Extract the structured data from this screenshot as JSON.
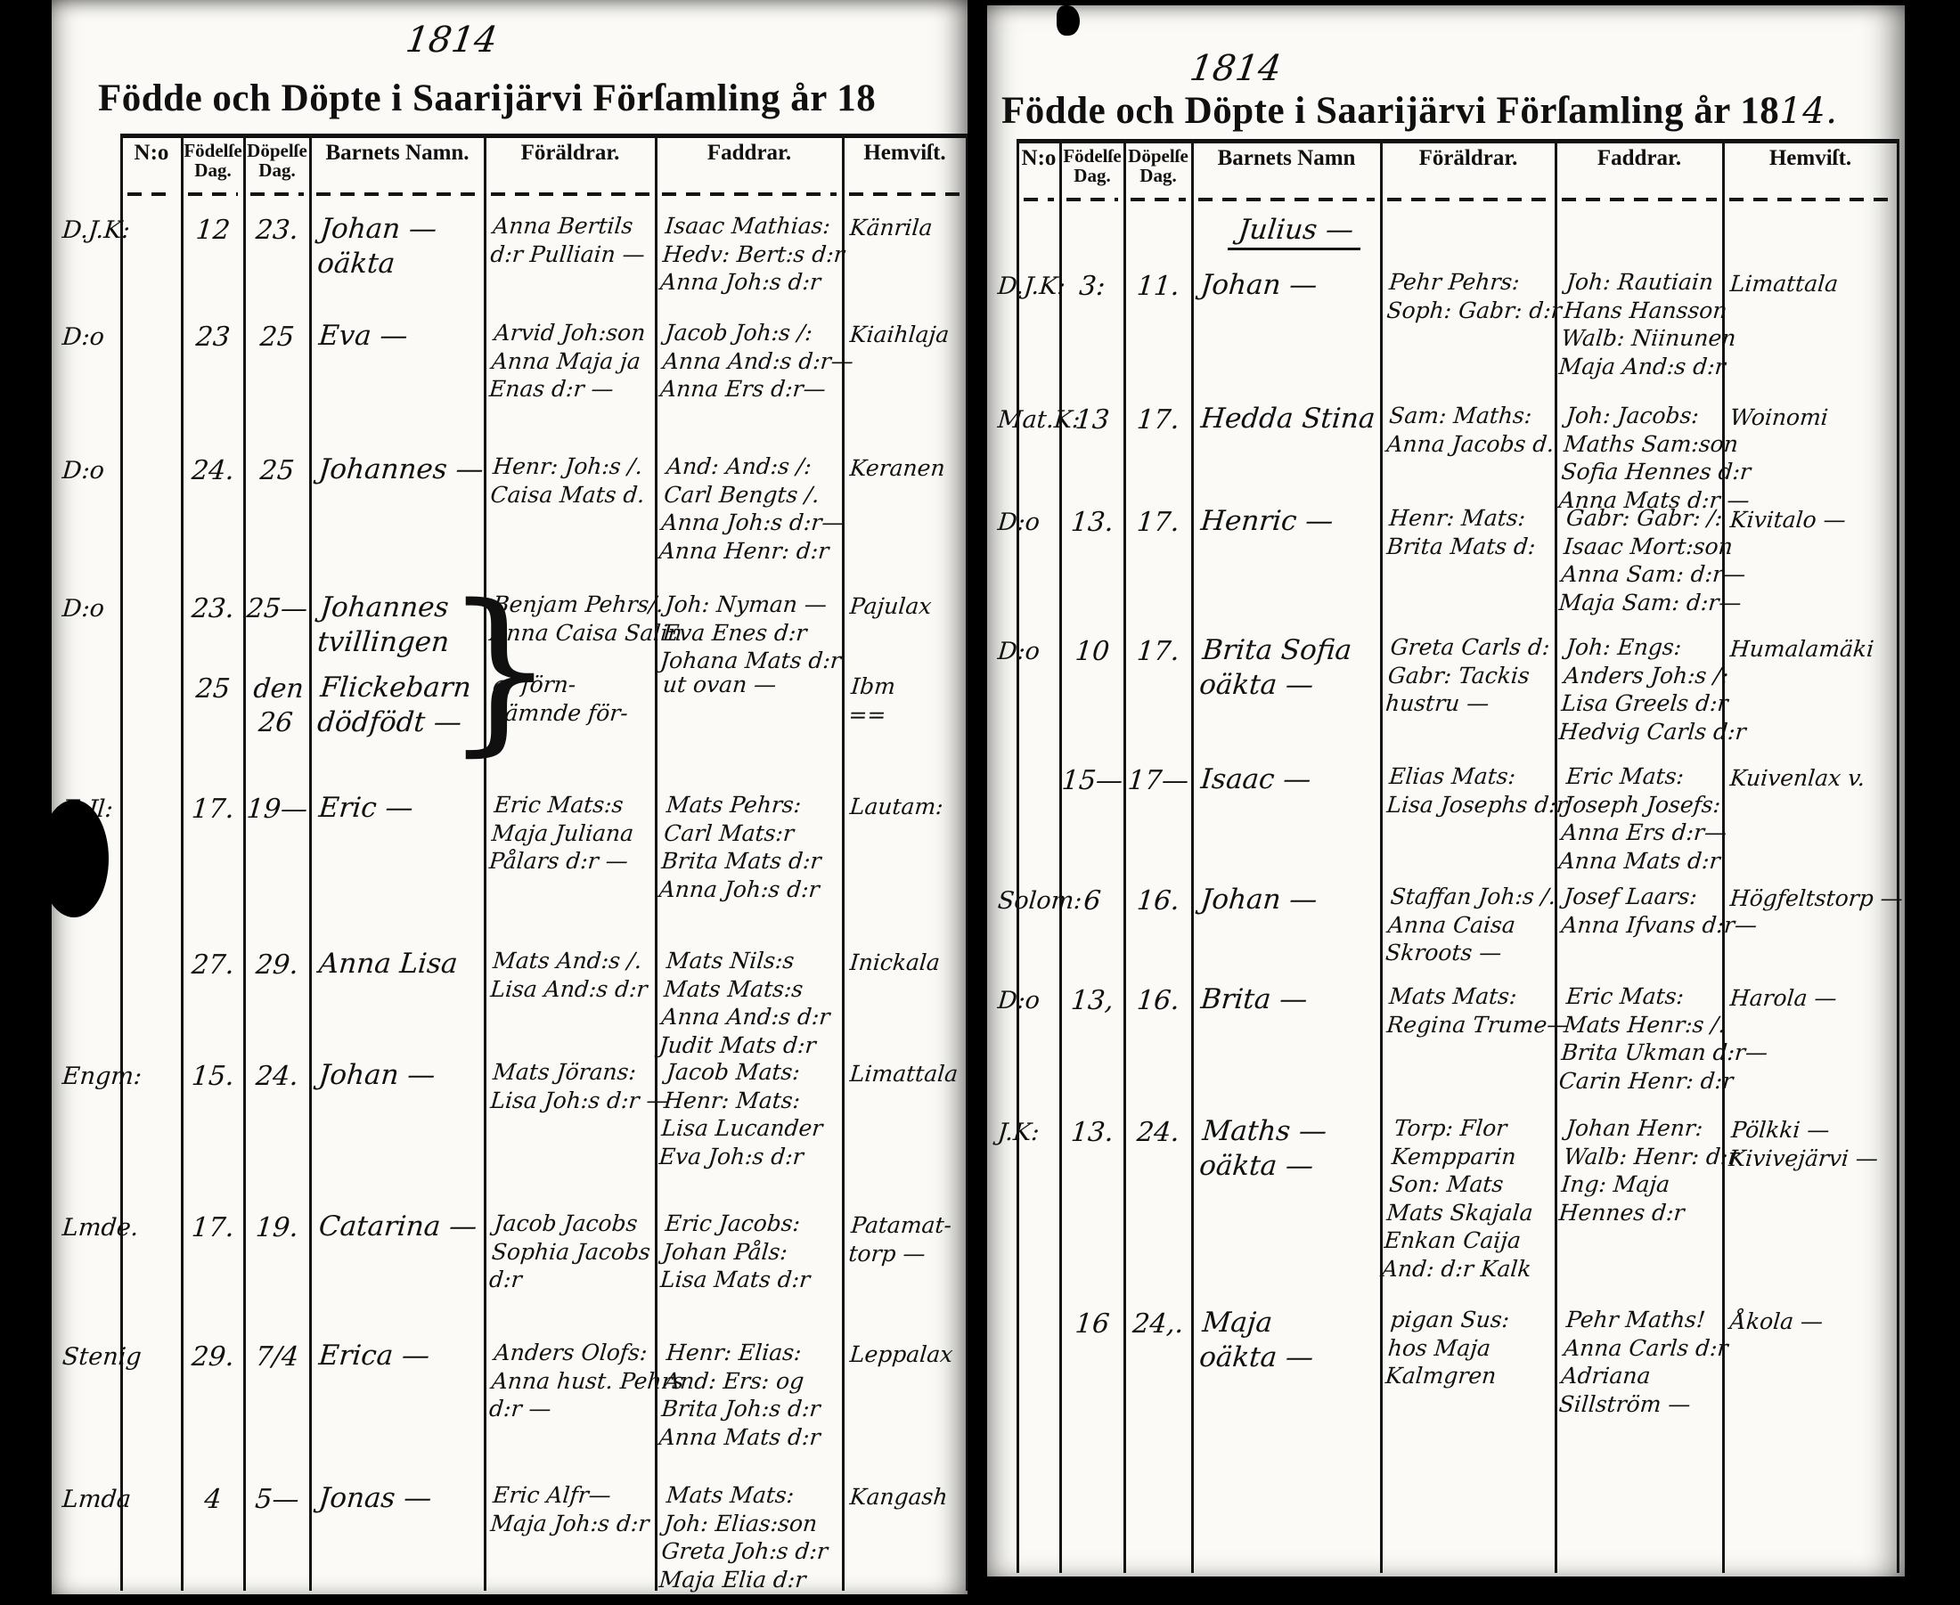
{
  "pages": [
    {
      "side": "left",
      "year_note": "1814",
      "title": "Födde och Döpte i Saarijärvi Förſamling år 18",
      "title_year_handwritten": "",
      "columns": [
        {
          "l1": "N:o",
          "l2": ""
        },
        {
          "l1": "Födelſe",
          "l2": "Dag."
        },
        {
          "l1": "Döpelſe",
          "l2": "Dag."
        },
        {
          "l1": "Barnets Namn.",
          "l2": ""
        },
        {
          "l1": "Föräldrar.",
          "l2": ""
        },
        {
          "l1": "Faddrar.",
          "l2": ""
        },
        {
          "l1": "Hemviſt.",
          "l2": ""
        }
      ],
      "rows": [
        {
          "margin": "D.J.K:",
          "born": [
            "12"
          ],
          "bapt": [
            "23."
          ],
          "name": [
            "Johan —",
            "oäkta"
          ],
          "parents": [
            "Anna Bertils",
            "d:r Pulliain —"
          ],
          "godparents": [
            "Isaac Mathias:",
            "Hedv: Bert:s d:r",
            "Anna Joh:s d:r"
          ],
          "residence": [
            "Känrila"
          ]
        },
        {
          "margin": "D:o",
          "born": [
            "23"
          ],
          "bapt": [
            "25"
          ],
          "name": [
            "Eva —"
          ],
          "parents": [
            "Arvid Joh:son",
            "Anna Maja ja",
            "Enas d:r —"
          ],
          "godparents": [
            "Jacob Joh:s /:",
            "Anna And:s d:r—",
            "Anna Ers d:r—"
          ],
          "residence": [
            "Kiaihlaja"
          ]
        },
        {
          "margin": "D:o",
          "born": [
            "24."
          ],
          "bapt": [
            "25"
          ],
          "name": [
            "Johannes —"
          ],
          "parents": [
            "Henr: Joh:s /.",
            "Caisa Mats d."
          ],
          "godparents": [
            "And: And:s /:",
            "Carl Bengts /.",
            "Anna Joh:s d:r—",
            "Anna Henr: d:r"
          ],
          "residence": [
            "Keranen"
          ]
        },
        {
          "margin": "D:o",
          "born": [
            "23."
          ],
          "bapt": [
            "25—"
          ],
          "name": [
            "Johannes",
            "tvillingen"
          ],
          "parents": [
            "Benjam Pehrs/.",
            "Anna Caisa Salin"
          ],
          "godparents": [
            "Joh: Nyman —",
            "Eva Enes d:r",
            "Johana Mats d:r"
          ],
          "residence": [
            "Pajulax"
          ]
        },
        {
          "margin": "",
          "born": [
            "25"
          ],
          "bapt": [
            "den",
            "26"
          ],
          "name": [
            "Flickebarn",
            "dödfödt —"
          ],
          "parents": [
            "af förn-",
            "nämnde för-"
          ],
          "godparents": [
            "ut ovan —"
          ],
          "residence": [
            "Ibm",
            "=="
          ]
        },
        {
          "margin": "E.Jl:",
          "born": [
            "17."
          ],
          "bapt": [
            "19—"
          ],
          "name": [
            "Eric —"
          ],
          "parents": [
            "Eric Mats:s",
            "Maja Juliana",
            "Pålars d:r —"
          ],
          "godparents": [
            "Mats Pehrs:",
            "Carl Mats:r",
            "Brita Mats d:r",
            "Anna Joh:s d:r"
          ],
          "residence": [
            "Lautam:"
          ]
        },
        {
          "margin": "",
          "born": [
            "27."
          ],
          "bapt": [
            "29."
          ],
          "name": [
            "Anna Lisa"
          ],
          "parents": [
            "Mats And:s /.",
            "Lisa And:s d:r"
          ],
          "godparents": [
            "Mats Nils:s",
            "Mats Mats:s",
            "Anna And:s d:r",
            "Judit Mats d:r"
          ],
          "residence": [
            "Inickala"
          ]
        },
        {
          "margin": "Engm:",
          "born": [
            "15."
          ],
          "bapt": [
            "24."
          ],
          "name": [
            "Johan —"
          ],
          "parents": [
            "Mats Jörans:",
            "Lisa Joh:s d:r —"
          ],
          "godparents": [
            "Jacob Mats:",
            "Henr: Mats:",
            "Lisa Lucander",
            "Eva Joh:s d:r"
          ],
          "residence": [
            "Limattala"
          ]
        },
        {
          "margin": "Lmde.",
          "born": [
            "17."
          ],
          "bapt": [
            "19."
          ],
          "name": [
            "Catarina —"
          ],
          "parents": [
            "Jacob Jacobs",
            "Sophia Jacobs",
            "d:r"
          ],
          "godparents": [
            "Eric Jacobs:",
            "Johan Påls:",
            "Lisa Mats d:r"
          ],
          "residence": [
            "Patamat-",
            "torp —"
          ]
        },
        {
          "margin": "Stenig",
          "born": [
            "29."
          ],
          "bapt": [
            "7/4"
          ],
          "name": [
            "Erica —"
          ],
          "parents": [
            "Anders Olofs:",
            "Anna hust. Pehrs",
            "d:r —"
          ],
          "godparents": [
            "Henr: Elias:",
            "And: Ers: og",
            "Brita Joh:s d:r",
            "Anna Mats d:r"
          ],
          "residence": [
            "Leppalax"
          ]
        },
        {
          "margin": "Lmda",
          "born": [
            "4"
          ],
          "bapt": [
            "5—"
          ],
          "name": [
            "Jonas —"
          ],
          "parents": [
            "Eric Alfr—",
            "Maja Joh:s d:r"
          ],
          "godparents": [
            "Mats Mats:",
            "Joh: Elias:son",
            "Greta Joh:s d:r",
            "Maja Elia d:r"
          ],
          "residence": [
            "Kangash"
          ]
        }
      ]
    },
    {
      "side": "right",
      "year_note": "1814",
      "title": "Födde och Döpte i Saarijärvi Förſamling år 18",
      "title_year_handwritten": "14.",
      "month_header": "Julius —",
      "columns": [
        {
          "l1": "N:o",
          "l2": ""
        },
        {
          "l1": "Födelſe",
          "l2": "Dag."
        },
        {
          "l1": "Döpelſe",
          "l2": "Dag."
        },
        {
          "l1": "Barnets Namn",
          "l2": ""
        },
        {
          "l1": "Föräldrar.",
          "l2": ""
        },
        {
          "l1": "Faddrar.",
          "l2": ""
        },
        {
          "l1": "Hemviſt.",
          "l2": ""
        }
      ],
      "rows": [
        {
          "margin": "D.J.K:",
          "born": [
            "3:"
          ],
          "bapt": [
            "11."
          ],
          "name": [
            "Johan —"
          ],
          "parents": [
            "Pehr Pehrs:",
            "Soph: Gabr: d:r"
          ],
          "godparents": [
            "Joh: Rautiain",
            "Hans Hansson",
            "Walb: Niinunen",
            "Maja And:s d:r"
          ],
          "residence": [
            "Limattala"
          ]
        },
        {
          "margin": "Mat.K:",
          "born": [
            "13"
          ],
          "bapt": [
            "17."
          ],
          "name": [
            "Hedda Stina"
          ],
          "parents": [
            "Sam: Maths:",
            "Anna Jacobs d."
          ],
          "godparents": [
            "Joh: Jacobs:",
            "Maths Sam:son",
            "Sofia Hennes d:r",
            "Anna Mats d:r —"
          ],
          "residence": [
            "Woinomi"
          ]
        },
        {
          "margin": "D:o",
          "born": [
            "13."
          ],
          "bapt": [
            "17."
          ],
          "name": [
            "Henric —"
          ],
          "parents": [
            "Henr: Mats:",
            "Brita Mats d:"
          ],
          "godparents": [
            "Gabr: Gabr: /:",
            "Isaac Mort:son",
            "Anna Sam: d:r—",
            "Maja Sam: d:r—"
          ],
          "residence": [
            "Kivitalo —"
          ]
        },
        {
          "margin": "D:o",
          "born": [
            "10"
          ],
          "bapt": [
            "17."
          ],
          "name": [
            "Brita Sofia",
            "oäkta —"
          ],
          "parents": [
            "Greta Carls d:",
            "Gabr: Tackis",
            "hustru —"
          ],
          "godparents": [
            "Joh: Engs:",
            "Anders Joh:s /:",
            "Lisa Greels d:r",
            "Hedvig Carls d:r"
          ],
          "residence": [
            "Humalamäki"
          ]
        },
        {
          "margin": "",
          "born": [
            "15—"
          ],
          "bapt": [
            "17—"
          ],
          "name": [
            "Isaac —"
          ],
          "parents": [
            "Elias Mats:",
            "Lisa Josephs d:r"
          ],
          "godparents": [
            "Eric Mats:",
            "Joseph Josefs:",
            "Anna Ers d:r—",
            "Anna Mats d:r"
          ],
          "residence": [
            "Kuivenlax v."
          ]
        },
        {
          "margin": "Solom:",
          "born": [
            "6"
          ],
          "bapt": [
            "16."
          ],
          "name": [
            "Johan —"
          ],
          "parents": [
            "Staffan Joh:s /.",
            "Anna Caisa",
            "Skroots —"
          ],
          "godparents": [
            "Josef Laars:",
            "Anna Ifvans d:r—"
          ],
          "residence": [
            "Högfeltstorp —"
          ]
        },
        {
          "margin": "D:o",
          "born": [
            "13,"
          ],
          "bapt": [
            "16."
          ],
          "name": [
            "Brita —"
          ],
          "parents": [
            "Mats Mats:",
            "Regina Trume—"
          ],
          "godparents": [
            "Eric Mats:",
            "Mats Henr:s /.",
            "Brita Ukman d:r—",
            "Carin Henr: d:r"
          ],
          "residence": [
            "Harola —"
          ]
        },
        {
          "margin": "J.K:",
          "born": [
            "13."
          ],
          "bapt": [
            "24."
          ],
          "name": [
            "Maths —",
            "oäkta —"
          ],
          "parents": [
            "Torp: Flor",
            "Kempparin",
            "Son: Mats",
            "Mats Skajala",
            "Enkan Caija",
            "And: d:r Kalk"
          ],
          "godparents": [
            "Johan Henr:",
            "Walb: Henr: d:r",
            "Ing: Maja",
            "Hennes d:r"
          ],
          "residence": [
            "Pölkki —",
            "Kivivejärvi —"
          ]
        },
        {
          "margin": "",
          "born": [
            "16"
          ],
          "bapt": [
            "24,."
          ],
          "name": [
            "Maja",
            "oäkta —"
          ],
          "parents": [
            "pigan Sus:",
            "hos Maja",
            "Kalmgren"
          ],
          "godparents": [
            "Pehr Maths!",
            "Anna Carls d:r",
            "Adriana",
            "Sillström —"
          ],
          "residence": [
            "Åkola —"
          ]
        }
      ]
    }
  ]
}
